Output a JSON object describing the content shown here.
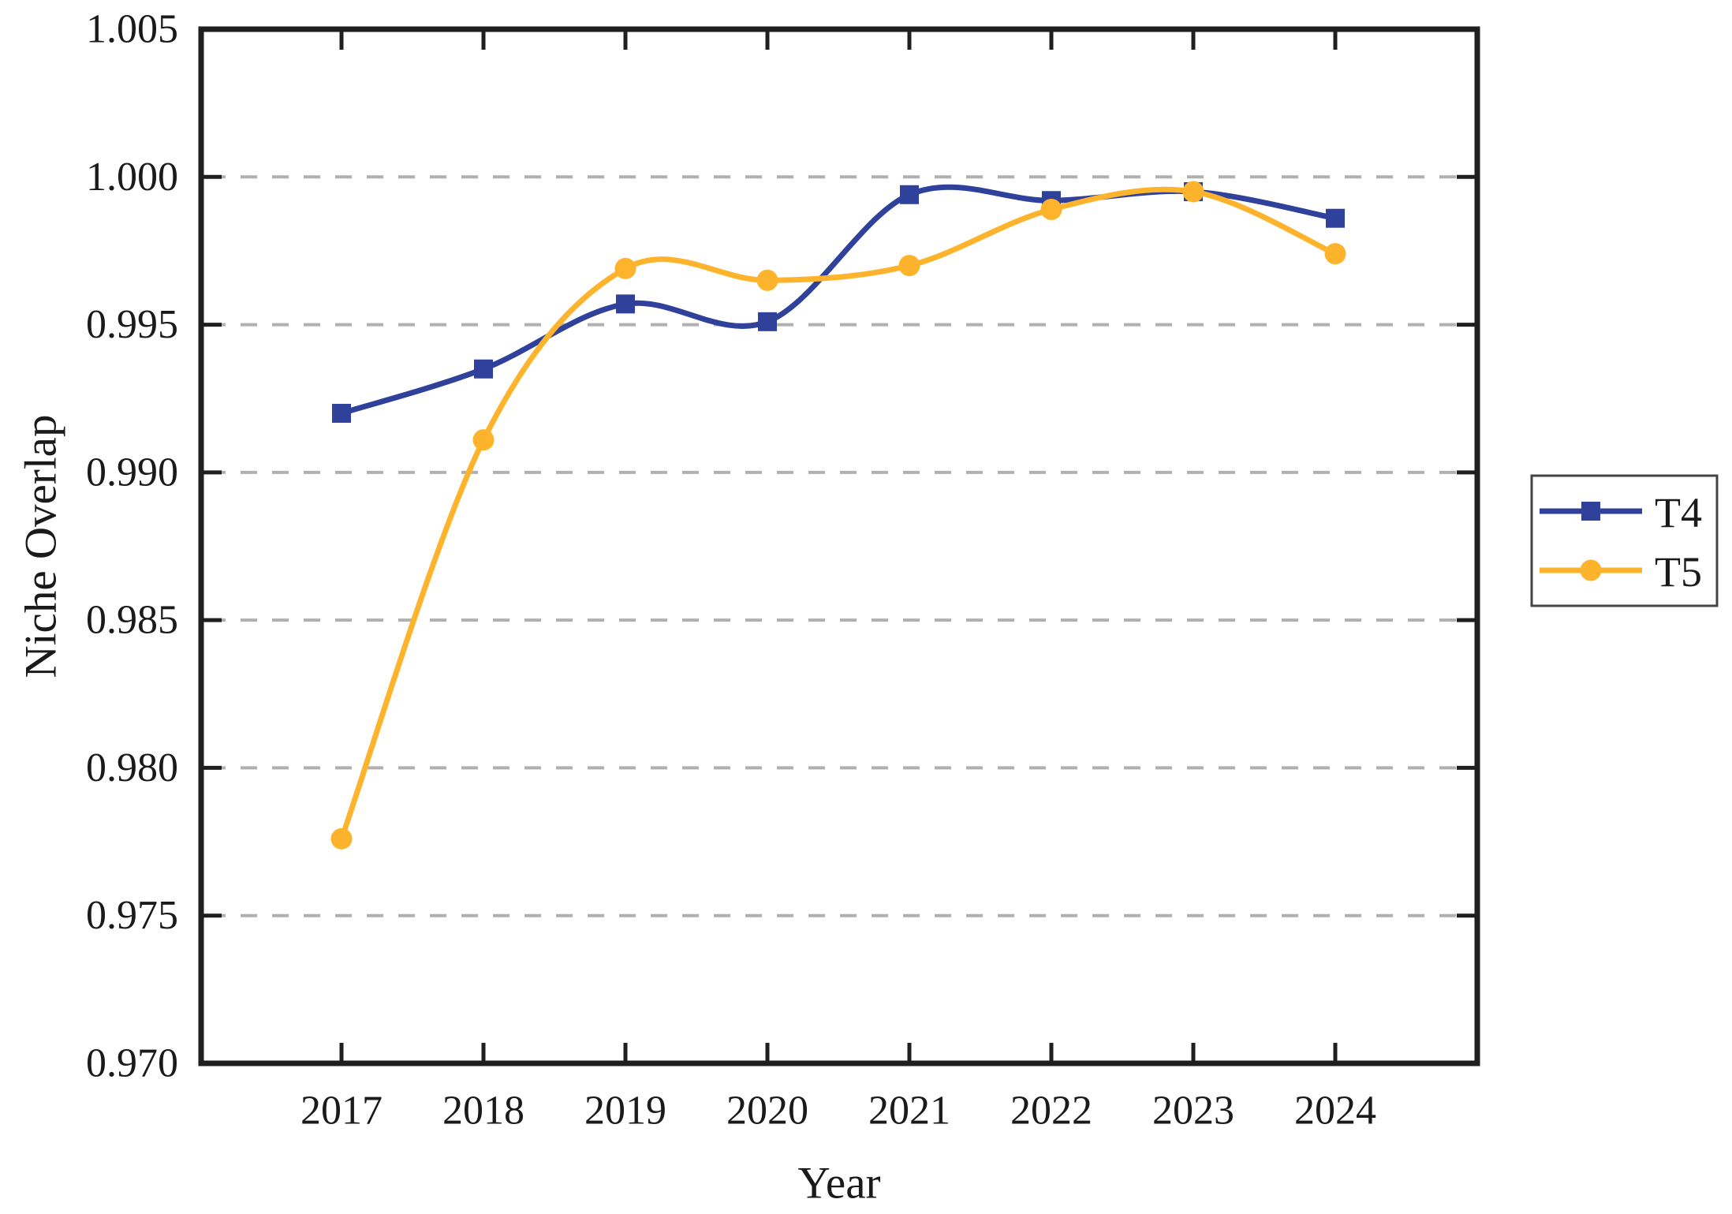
{
  "chart_data": {
    "type": "line",
    "title": "",
    "xlabel": "Year",
    "ylabel": "Niche Overlap",
    "x_tick_labels": [
      "2017",
      "2018",
      "2019",
      "2020",
      "2021",
      "2022",
      "2023",
      "2024"
    ],
    "y_tick_labels": [
      "1.005",
      "1.000",
      "0.995",
      "0.990",
      "0.985",
      "0.980",
      "0.975",
      "0.970"
    ],
    "ylim": [
      0.97,
      1.005
    ],
    "ytick_step": 0.005,
    "grid": "horizontal dashed gridlines at each y tick (interior only)",
    "legend_position": "outside right, boxed",
    "series": [
      {
        "name": "T4",
        "marker": "square",
        "color": "#2F419B",
        "values": [
          0.992,
          0.9935,
          0.9957,
          0.9951,
          0.9994,
          0.9992,
          0.9995,
          0.9986
        ]
      },
      {
        "name": "T5",
        "marker": "circle",
        "color": "#FDB42C",
        "values": [
          0.9776,
          0.9911,
          0.9969,
          0.9965,
          0.997,
          0.9989,
          0.9995,
          0.9974
        ]
      }
    ],
    "colors": {
      "axis": "#1f1f1f",
      "grid": "#b0b0b0",
      "text": "#1a1a1a",
      "legend_border": "#444444",
      "background": "#ffffff"
    }
  }
}
